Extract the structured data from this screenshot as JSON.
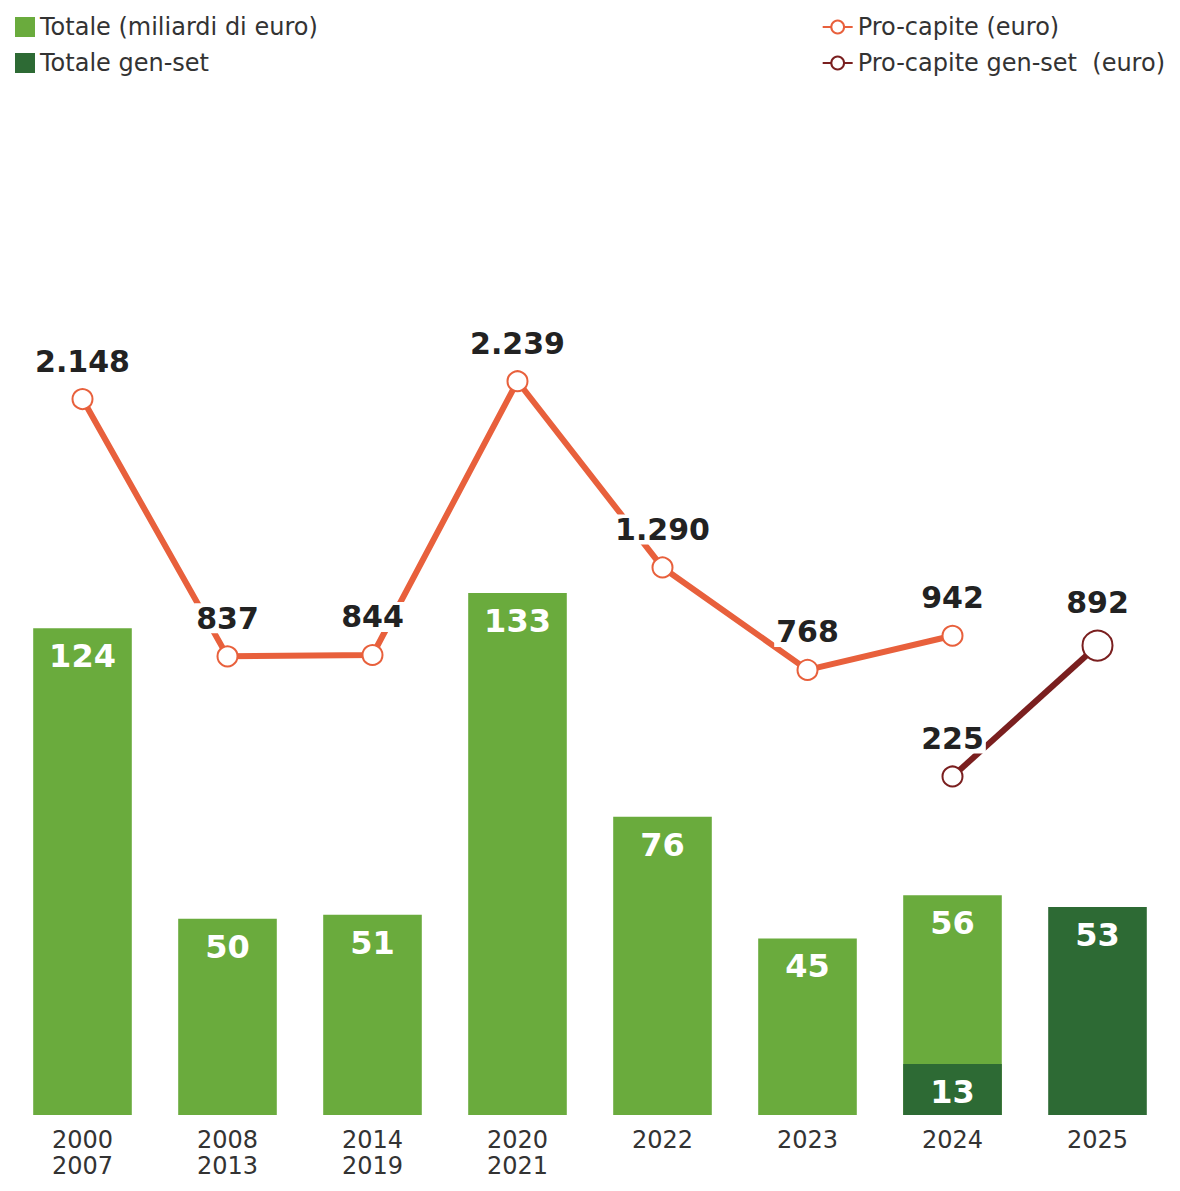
{
  "chart_data": {
    "type": "bar",
    "categories": [
      "2000\n2007",
      "2008\n2013",
      "2014\n2019",
      "2020\n2021",
      "2022",
      "2023",
      "2024",
      "2025"
    ],
    "series": [
      {
        "name": "Totale (miliardi di euro)",
        "type": "bar",
        "color": "#6aab3d",
        "values": [
          124,
          50,
          51,
          133,
          76,
          45,
          56,
          null
        ]
      },
      {
        "name": "Totale gen-set",
        "type": "bar",
        "color": "#2d6a34",
        "values": [
          null,
          null,
          null,
          null,
          null,
          null,
          13,
          53
        ]
      },
      {
        "name": "Pro-capite (euro)",
        "type": "line",
        "axis": "y2",
        "color": "#e8603c",
        "marker": "emptyCircle",
        "values": [
          2148,
          837,
          844,
          2239,
          1290,
          768,
          942,
          null
        ],
        "value_labels": [
          "2.148",
          "837",
          "844",
          "2.239",
          "1.290",
          "768",
          "942",
          null
        ]
      },
      {
        "name": "Pro-capite gen-set  (euro)",
        "type": "line",
        "axis": "y2",
        "color": "#7a1f1f",
        "marker": "emptyCircle",
        "values": [
          null,
          null,
          null,
          null,
          null,
          null,
          225,
          892
        ],
        "value_labels": [
          null,
          null,
          null,
          null,
          null,
          null,
          "225",
          "892"
        ]
      }
    ],
    "ylim": [
      0,
      200
    ],
    "yticks": [
      0,
      50,
      100,
      150,
      200
    ],
    "y2lim": [
      -1500,
      2500
    ],
    "y2ticks": [
      -1500,
      -1000,
      -500,
      0,
      500,
      1000,
      1500,
      2000,
      2500
    ],
    "data_labels": true,
    "tick_labels": "x",
    "legend": "top",
    "grid": false
  }
}
